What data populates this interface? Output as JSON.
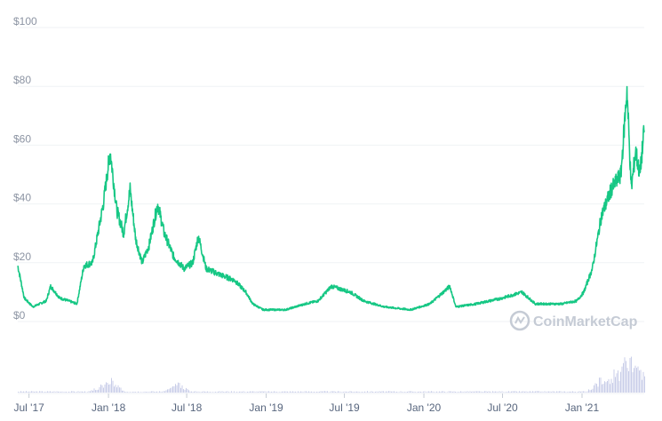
{
  "chart_data": {
    "type": "line",
    "title": "",
    "xlabel": "",
    "ylabel": "",
    "ylim": [
      0,
      100
    ],
    "y_ticks": [
      "$100",
      "$80",
      "$60",
      "$40",
      "$20",
      "$0"
    ],
    "y_tick_values": [
      100,
      80,
      60,
      40,
      20,
      0
    ],
    "x_ticks": [
      {
        "label": "Jul '17",
        "date": "2017-07-01"
      },
      {
        "label": "Jan '18",
        "date": "2018-01-01"
      },
      {
        "label": "Jul '18",
        "date": "2018-07-01"
      },
      {
        "label": "Jan '19",
        "date": "2019-01-01"
      },
      {
        "label": "Jul '19",
        "date": "2019-07-01"
      },
      {
        "label": "Jan '20",
        "date": "2020-01-01"
      },
      {
        "label": "Jul '20",
        "date": "2020-07-01"
      },
      {
        "label": "Jan '21",
        "date": "2021-01-01"
      }
    ],
    "xlim": [
      "2017-06-05",
      "2021-05-25"
    ],
    "grid": true,
    "line_color": "#16c784",
    "volume_color": "#c8cde8",
    "series": [
      {
        "kind": "price",
        "points": [
          [
            "2017-06-05",
            19
          ],
          [
            "2017-06-20",
            8
          ],
          [
            "2017-07-10",
            5
          ],
          [
            "2017-08-10",
            7
          ],
          [
            "2017-08-20",
            12
          ],
          [
            "2017-09-10",
            8
          ],
          [
            "2017-10-01",
            7
          ],
          [
            "2017-10-20",
            6
          ],
          [
            "2017-11-05",
            19
          ],
          [
            "2017-11-25",
            20
          ],
          [
            "2017-12-05",
            28
          ],
          [
            "2017-12-20",
            40
          ],
          [
            "2018-01-05",
            58
          ],
          [
            "2018-01-20",
            38
          ],
          [
            "2018-02-05",
            30
          ],
          [
            "2018-02-20",
            45
          ],
          [
            "2018-03-05",
            28
          ],
          [
            "2018-03-20",
            20
          ],
          [
            "2018-04-05",
            26
          ],
          [
            "2018-04-25",
            40
          ],
          [
            "2018-05-10",
            30
          ],
          [
            "2018-06-01",
            22
          ],
          [
            "2018-06-25",
            18
          ],
          [
            "2018-07-15",
            20
          ],
          [
            "2018-07-28",
            29
          ],
          [
            "2018-08-15",
            18
          ],
          [
            "2018-09-15",
            16
          ],
          [
            "2018-10-20",
            14
          ],
          [
            "2018-11-15",
            10
          ],
          [
            "2018-12-01",
            6
          ],
          [
            "2018-12-25",
            4
          ],
          [
            "2019-02-15",
            4
          ],
          [
            "2019-04-01",
            6
          ],
          [
            "2019-05-01",
            7
          ],
          [
            "2019-06-01",
            12
          ],
          [
            "2019-07-15",
            10
          ],
          [
            "2019-08-15",
            7
          ],
          [
            "2019-10-01",
            5
          ],
          [
            "2019-12-01",
            4
          ],
          [
            "2020-01-15",
            6
          ],
          [
            "2020-02-15",
            10
          ],
          [
            "2020-03-01",
            12
          ],
          [
            "2020-03-15",
            5
          ],
          [
            "2020-05-01",
            6
          ],
          [
            "2020-07-01",
            8
          ],
          [
            "2020-08-15",
            10
          ],
          [
            "2020-09-15",
            6
          ],
          [
            "2020-11-15",
            6
          ],
          [
            "2020-12-20",
            7
          ],
          [
            "2021-01-05",
            10
          ],
          [
            "2021-01-25",
            18
          ],
          [
            "2021-02-15",
            36
          ],
          [
            "2021-03-10",
            45
          ],
          [
            "2021-04-01",
            50
          ],
          [
            "2021-04-15",
            79
          ],
          [
            "2021-04-25",
            45
          ],
          [
            "2021-05-05",
            58
          ],
          [
            "2021-05-15",
            50
          ],
          [
            "2021-05-25",
            65
          ]
        ]
      },
      {
        "kind": "volume",
        "points": [
          [
            "2017-12-20",
            0.2
          ],
          [
            "2018-01-05",
            0.3
          ],
          [
            "2018-06-10",
            0.2
          ],
          [
            "2021-02-15",
            0.35
          ],
          [
            "2021-03-15",
            0.45
          ],
          [
            "2021-04-10",
            0.8
          ],
          [
            "2021-04-20",
            1.0
          ],
          [
            "2021-05-10",
            0.6
          ],
          [
            "2021-05-20",
            0.5
          ]
        ]
      }
    ]
  },
  "watermark": {
    "icon": "coinmarketcap-logo-icon",
    "text": "CoinMarketCap"
  }
}
